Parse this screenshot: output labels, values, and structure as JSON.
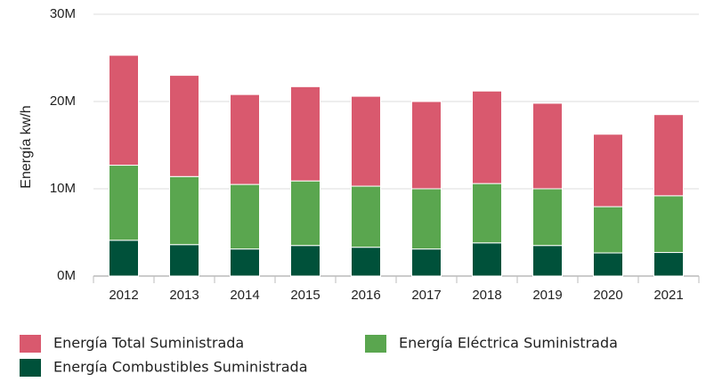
{
  "chart_data": {
    "type": "stacked_bar",
    "y_label": "Energía kw/h",
    "categories": [
      "2012",
      "2013",
      "2014",
      "2015",
      "2016",
      "2017",
      "2018",
      "2019",
      "2020",
      "2021"
    ],
    "series": [
      {
        "name": "Energía Combustibles Suministrada",
        "color": "#00513a",
        "values": [
          4100000,
          3600000,
          3100000,
          3500000,
          3300000,
          3100000,
          3800000,
          3500000,
          2650000,
          2700000
        ]
      },
      {
        "name": "Energía Eléctrica Suministrada",
        "color": "#5aa64f",
        "values": [
          8600000,
          7800000,
          7400000,
          7400000,
          7000000,
          6900000,
          6800000,
          6500000,
          5300000,
          6500000
        ]
      },
      {
        "name": "Energía Total Suministrada",
        "color": "#d9596e",
        "values": [
          12600000,
          11600000,
          10300000,
          10800000,
          10300000,
          10000000,
          10600000,
          9800000,
          8300000,
          9300000
        ]
      }
    ],
    "ylim": [
      0,
      30000000
    ],
    "yticks": [
      {
        "value": 0,
        "label": "0M"
      },
      {
        "value": 10000000,
        "label": "10M"
      },
      {
        "value": 20000000,
        "label": "20M"
      },
      {
        "value": 30000000,
        "label": "30M"
      }
    ],
    "grid": true
  }
}
